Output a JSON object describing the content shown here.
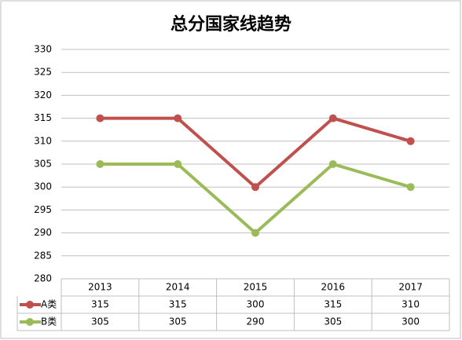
{
  "chart_data": {
    "type": "line",
    "title": "总分国家线趋势",
    "categories": [
      "2013",
      "2014",
      "2015",
      "2016",
      "2017"
    ],
    "series": [
      {
        "name": "A类",
        "color": "#c0504d",
        "values": [
          315,
          315,
          300,
          315,
          310
        ]
      },
      {
        "name": "B类",
        "color": "#9bbb59",
        "values": [
          305,
          305,
          290,
          305,
          300
        ]
      }
    ],
    "ylim": [
      280,
      330
    ],
    "yticks": [
      280,
      285,
      290,
      295,
      300,
      305,
      310,
      315,
      320,
      325,
      330
    ],
    "grid": true,
    "data_table": true
  }
}
